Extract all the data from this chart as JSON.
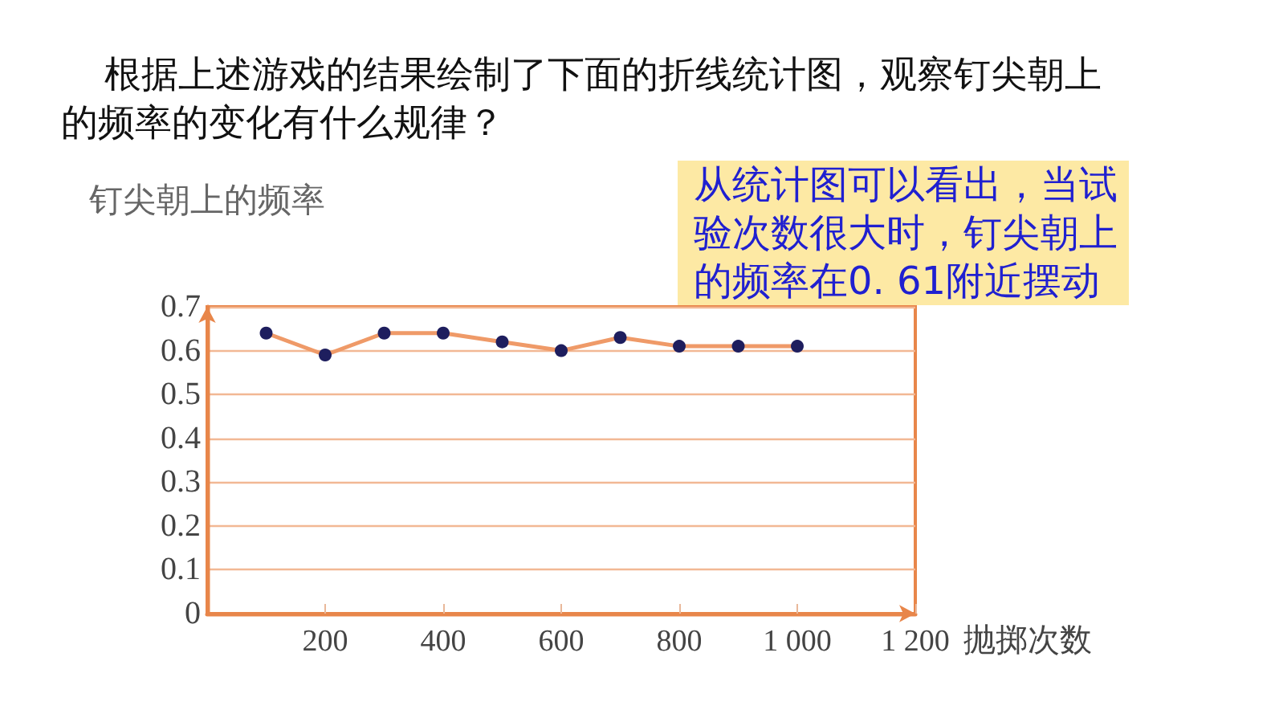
{
  "chart_data": {
    "type": "line",
    "title": "根据上述游戏的结果绘制了下面的折线统计图，观察钉尖朝上的频率的变化有什么规律？",
    "xlabel": "抛掷次数",
    "ylabel": "钉尖朝上的频率",
    "annotations": [
      "从统计图可以看出，当试验次数很大时，钉尖朝上的频率在0. 61附近摆动"
    ],
    "x": [
      100,
      200,
      300,
      400,
      500,
      600,
      700,
      800,
      900,
      1000
    ],
    "series": [
      {
        "color": "#ef9a68",
        "colors": [
          "#1e1e5e",
          "#1e1e5e",
          "#1e1e5e",
          "#1e1e5e",
          "#1e1e5e",
          "#1e1e5e",
          "#1e1e5e",
          "#1e1e5e",
          "#1e1e5e",
          "#1e1e5e"
        ],
        "values": [
          0.64,
          0.59,
          0.64,
          0.64,
          0.62,
          0.6,
          0.63,
          0.61,
          0.61,
          0.61
        ]
      }
    ],
    "xlim": [
      0,
      1200
    ],
    "xticks": [
      200,
      400,
      600,
      800,
      {
        "value": 1000,
        "label": "1 000"
      },
      {
        "value": 1200,
        "label": "1 200"
      }
    ],
    "ylim": [
      0,
      0.7
    ],
    "yticks": [
      0,
      0.1,
      0.2,
      0.3,
      0.4,
      0.5,
      0.6,
      0.7
    ],
    "grid": "y",
    "marker": "circle",
    "line_style": "solid"
  }
}
